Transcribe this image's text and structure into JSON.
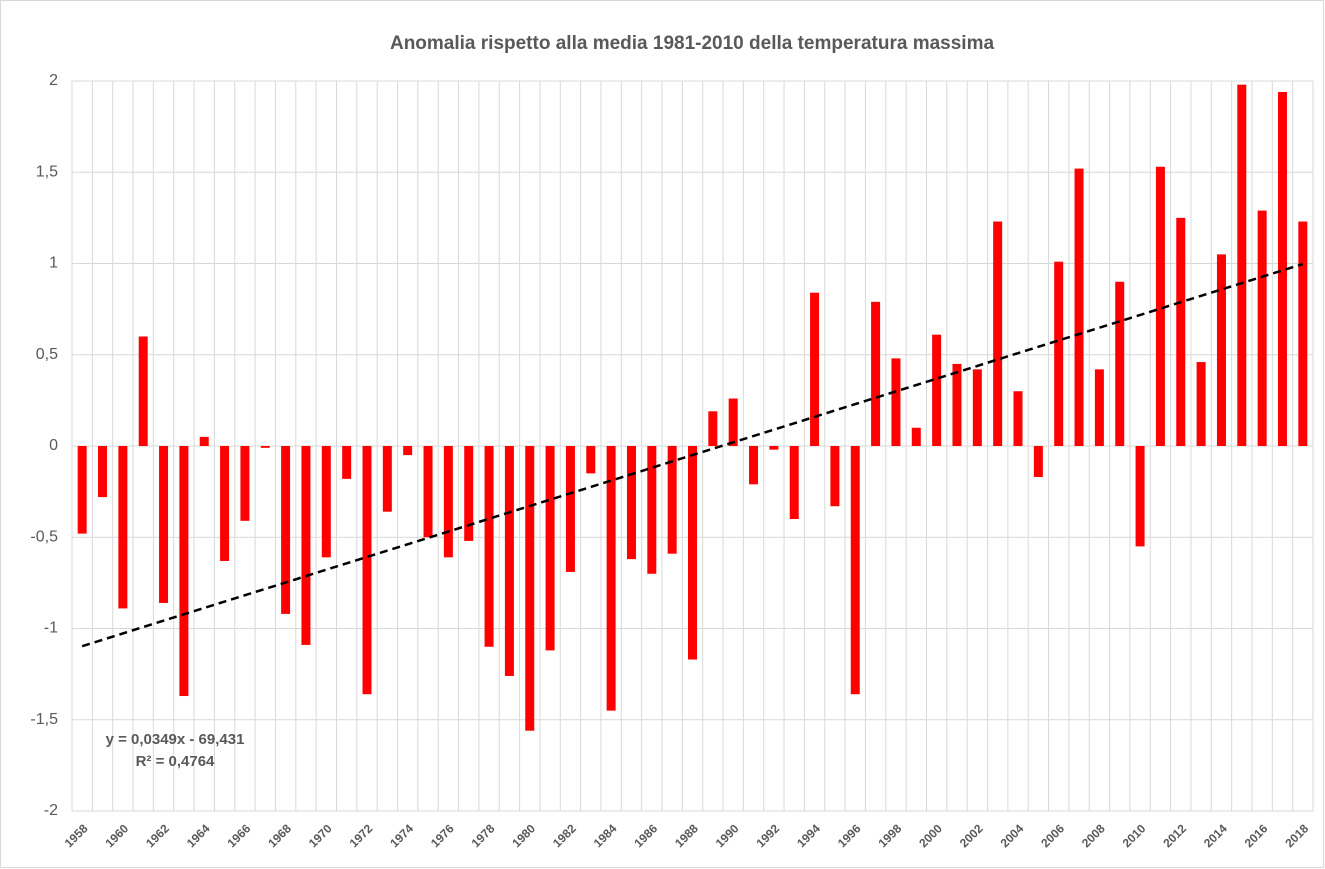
{
  "chart_data": {
    "type": "bar",
    "title": "Anomalia rispetto alla media 1981-2010 della temperatura massima",
    "x": [
      1958,
      1959,
      1960,
      1961,
      1962,
      1963,
      1964,
      1965,
      1966,
      1967,
      1968,
      1969,
      1970,
      1971,
      1972,
      1973,
      1974,
      1975,
      1976,
      1977,
      1978,
      1979,
      1980,
      1981,
      1982,
      1983,
      1984,
      1985,
      1986,
      1987,
      1988,
      1989,
      1990,
      1991,
      1992,
      1993,
      1994,
      1995,
      1996,
      1997,
      1998,
      1999,
      2000,
      2001,
      2002,
      2003,
      2004,
      2005,
      2006,
      2007,
      2008,
      2009,
      2010,
      2011,
      2012,
      2013,
      2014,
      2015,
      2016,
      2017,
      2018
    ],
    "values": [
      -0.48,
      -0.28,
      -0.89,
      0.6,
      -0.86,
      -1.37,
      0.05,
      -0.63,
      -0.41,
      -0.01,
      -0.92,
      -1.09,
      -0.61,
      -0.18,
      -1.36,
      -0.36,
      -0.05,
      -0.5,
      -0.61,
      -0.52,
      -1.1,
      -1.26,
      -1.56,
      -1.12,
      -0.69,
      -0.15,
      -1.45,
      -0.62,
      -0.7,
      -0.59,
      -1.17,
      0.19,
      0.26,
      -0.21,
      -0.02,
      -0.4,
      0.84,
      -0.33,
      -1.36,
      0.79,
      0.48,
      0.1,
      0.61,
      0.45,
      0.42,
      1.23,
      0.3,
      -0.17,
      1.01,
      1.52,
      0.42,
      0.9,
      -0.55,
      1.53,
      1.25,
      0.46,
      1.05,
      1.98,
      1.29,
      1.94,
      1.23
    ],
    "color": "#ff0000",
    "xticks": [
      1958,
      1960,
      1962,
      1964,
      1966,
      1968,
      1970,
      1972,
      1974,
      1976,
      1978,
      1980,
      1982,
      1984,
      1986,
      1988,
      1990,
      1992,
      1994,
      1996,
      1998,
      2000,
      2002,
      2004,
      2006,
      2008,
      2010,
      2012,
      2014,
      2016,
      2018
    ],
    "ylim": [
      -2,
      2
    ],
    "yticks": [
      -2,
      {
        "value": -1.5,
        "label": "-1,5"
      },
      -1,
      {
        "value": -0.5,
        "label": "-0,5"
      },
      0,
      {
        "value": 0.5,
        "label": "0,5"
      },
      1,
      {
        "value": 1.5,
        "label": "1,5"
      },
      2
    ],
    "grid": true,
    "trendline": {
      "slope": 0.0349,
      "intercept": -69.431,
      "color": "#000000",
      "equation": "y = 0,0349x - 69,431",
      "r2": "R² = 0,4764"
    }
  }
}
